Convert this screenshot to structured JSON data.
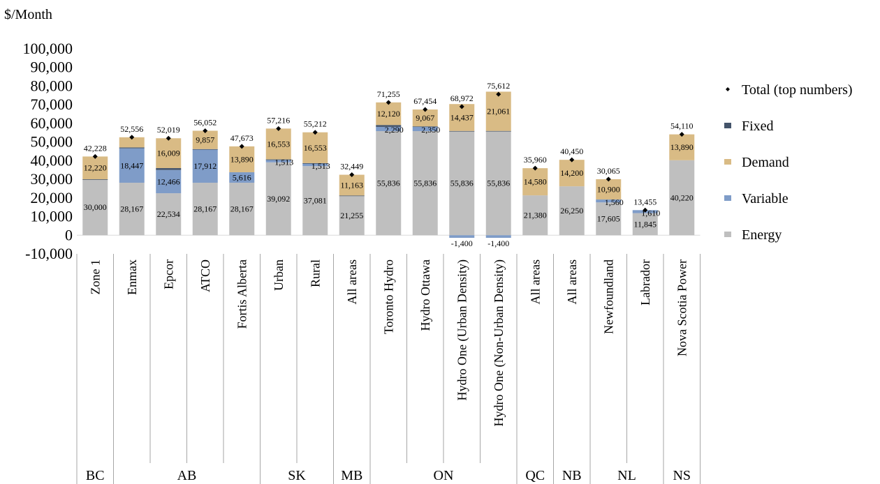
{
  "chart_data": {
    "type": "bar",
    "stacked": true,
    "ylabel": "$/Month",
    "ylim": [
      -10000,
      100000
    ],
    "yticks": [
      "100,000",
      "90,000",
      "80,000",
      "70,000",
      "60,000",
      "50,000",
      "40,000",
      "30,000",
      "20,000",
      "10,000",
      "0",
      "-10,000"
    ],
    "ytick_values": [
      100000,
      90000,
      80000,
      70000,
      60000,
      50000,
      40000,
      30000,
      20000,
      10000,
      0,
      -10000
    ],
    "grid": false,
    "legend_position": "right",
    "categories": [
      "Zone 1",
      "Enmax",
      "Epcor",
      "ATCO",
      "Fortis Alberta",
      "Urban",
      "Rural",
      "All areas",
      "Toronto Hydro",
      "Hydro Ottawa",
      "Hydro One (Urban Density)",
      "Hydro One (Non-Urban Density)",
      "All areas",
      "All areas",
      "Newfoundland",
      "Labrador",
      "Nova Scotia Power"
    ],
    "groups": [
      {
        "name": "BC",
        "count": 1
      },
      {
        "name": "AB",
        "count": 4
      },
      {
        "name": "SK",
        "count": 2
      },
      {
        "name": "MB",
        "count": 1
      },
      {
        "name": "ON",
        "count": 4
      },
      {
        "name": "QC",
        "count": 1
      },
      {
        "name": "NB",
        "count": 1
      },
      {
        "name": "NL",
        "count": 2
      },
      {
        "name": "NS",
        "count": 1
      }
    ],
    "series": [
      {
        "name": "Energy",
        "color": "#bfbfbf",
        "values": [
          30000,
          28167,
          22534,
          28167,
          28167,
          39092,
          37081,
          21255,
          55836,
          55836,
          55836,
          55836,
          21380,
          26250,
          17605,
          11845,
          40220
        ],
        "labels": [
          "30,000",
          "28,167",
          "22,534",
          "28,167",
          "28,167",
          "39,092",
          "37,081",
          "21,255",
          "55,836",
          "55,836",
          "55,836",
          "55,836",
          "21,380",
          "26,250",
          "17,605",
          "11,845",
          "40,220"
        ]
      },
      {
        "name": "Variable",
        "color": "#7f9cc8",
        "values": [
          0,
          18447,
          12466,
          17912,
          5616,
          1513,
          1513,
          0,
          2290,
          2350,
          -1400,
          -1400,
          0,
          0,
          1560,
          1610,
          0
        ],
        "labels": [
          "",
          "18,447",
          "12,466",
          "17,912",
          "5,616",
          "1,513",
          "1,513",
          "",
          "2,290",
          "2,350",
          "-1,400",
          "-1,400",
          "",
          "",
          "1,560",
          "1,610",
          ""
        ]
      },
      {
        "name": "Fixed",
        "color": "#44546a",
        "values": [
          8,
          500,
          1010,
          116,
          0,
          58,
          65,
          30,
          1009,
          201,
          99,
          115,
          0,
          0,
          0,
          0,
          0
        ],
        "labels": [
          "",
          "",
          "",
          "",
          "",
          "",
          "",
          "",
          "",
          "",
          "",
          "",
          "",
          "",
          "",
          "",
          ""
        ]
      },
      {
        "name": "Demand",
        "color": "#d9bb85",
        "values": [
          12220,
          5442,
          16009,
          9857,
          13890,
          16553,
          16553,
          11163,
          12120,
          9067,
          14437,
          21061,
          14580,
          14200,
          10900,
          0,
          13890
        ],
        "labels": [
          "12,220",
          "",
          "16,009",
          "9,857",
          "13,890",
          "16,553",
          "16,553",
          "11,163",
          "12,120",
          "9,067",
          "14,437",
          "21,061",
          "14,580",
          "14,200",
          "10,900",
          "",
          "13,890"
        ]
      }
    ],
    "totals": [
      42228,
      52556,
      52019,
      56052,
      47673,
      57216,
      55212,
      32449,
      71255,
      67454,
      68972,
      75612,
      35960,
      40450,
      30065,
      13455,
      54110
    ],
    "total_labels": [
      "42,228",
      "52,556",
      "52,019",
      "56,052",
      "47,673",
      "57,216",
      "55,212",
      "32,449",
      "71,255",
      "67,454",
      "68,972",
      "75,612",
      "35,960",
      "40,450",
      "30,065",
      "13,455",
      "54,110"
    ],
    "legend": [
      {
        "name": "Total (top numbers)",
        "marker": "diamond",
        "color": "#000000"
      },
      {
        "name": "Fixed",
        "marker": "square",
        "color": "#44546a"
      },
      {
        "name": "Demand",
        "marker": "square",
        "color": "#d9bb85"
      },
      {
        "name": "Variable",
        "marker": "square",
        "color": "#7f9cc8"
      },
      {
        "name": "Energy",
        "marker": "square",
        "color": "#bfbfbf"
      }
    ]
  }
}
